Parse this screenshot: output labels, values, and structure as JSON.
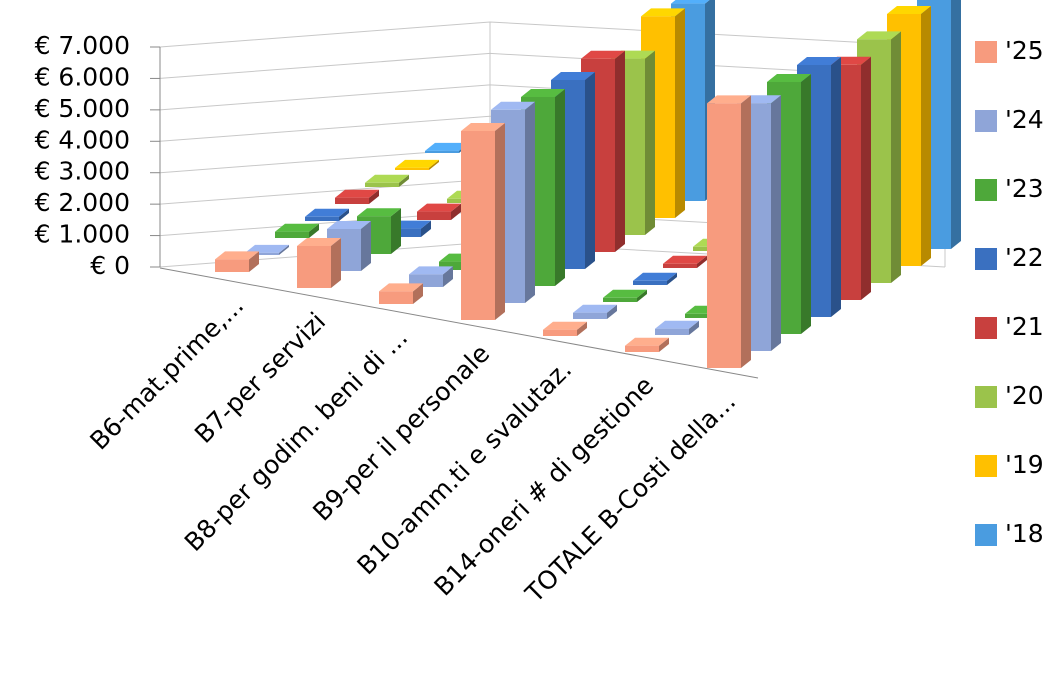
{
  "chart_data": {
    "type": "bar",
    "categories": [
      "B6-mat.prime,...",
      "B7-per servizi",
      "B8-per godim. beni di ...",
      "B9-per il personale",
      "B10-amm.ti e svalutaz.",
      "B14-oneri # di gestione",
      "TOTALE  B-Costi della..."
    ],
    "series": [
      {
        "name": "'25",
        "color": "#f79b7e",
        "values": [
          300,
          1000,
          300,
          4500,
          150,
          150,
          6300
        ]
      },
      {
        "name": "'24",
        "color": "#8fa5d8",
        "values": [
          50,
          1000,
          300,
          4600,
          150,
          150,
          5900
        ]
      },
      {
        "name": "'23",
        "color": "#4ea83a",
        "values": [
          150,
          900,
          200,
          4500,
          100,
          100,
          6000
        ]
      },
      {
        "name": "'22",
        "color": "#3a70c0",
        "values": [
          100,
          200,
          100,
          4500,
          100,
          100,
          6000
        ]
      },
      {
        "name": "'21",
        "color": "#c8403e",
        "values": [
          150,
          200,
          100,
          4600,
          100,
          100,
          5600
        ]
      },
      {
        "name": "'20",
        "color": "#9bc34b",
        "values": [
          100,
          100,
          100,
          4200,
          100,
          100,
          5800
        ]
      },
      {
        "name": "'19",
        "color": "#ffc000",
        "values": [
          50,
          100,
          100,
          4800,
          100,
          100,
          6000
        ]
      },
      {
        "name": "'18",
        "color": "#4a9ce0",
        "values": [
          50,
          100,
          100,
          4700,
          100,
          100,
          6900
        ]
      }
    ],
    "ylim": [
      0,
      7000
    ],
    "yticks": [
      {
        "value": 0,
        "label": "€ 0"
      },
      {
        "value": 1000,
        "label": "€ 1.000"
      },
      {
        "value": 2000,
        "label": "€ 2.000"
      },
      {
        "value": 3000,
        "label": "€ 3.000"
      },
      {
        "value": 4000,
        "label": "€ 4.000"
      },
      {
        "value": 5000,
        "label": "€ 5.000"
      },
      {
        "value": 6000,
        "label": "€ 6.000"
      },
      {
        "value": 7000,
        "label": "€ 7.000"
      }
    ],
    "grid": true,
    "legend": "right"
  }
}
